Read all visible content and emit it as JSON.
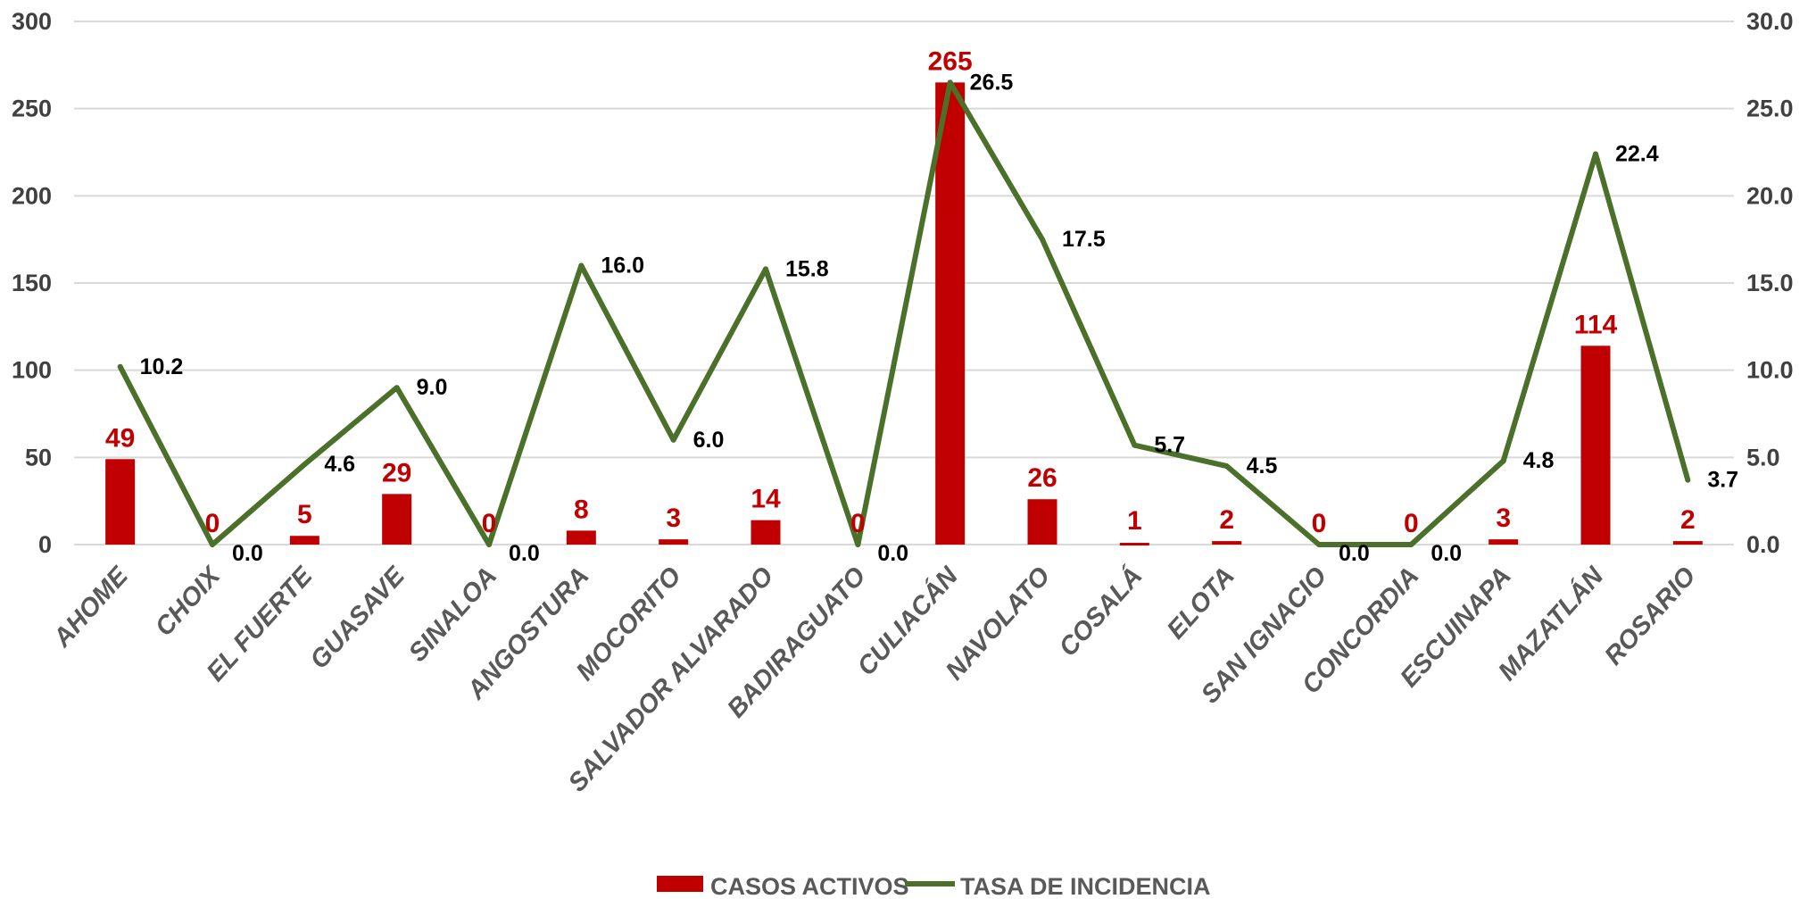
{
  "chart_data": {
    "type": "bar",
    "categories": [
      "AHOME",
      "CHOIX",
      "EL FUERTE",
      "GUASAVE",
      "SINALOA",
      "ANGOSTURA",
      "MOCORITO",
      "SALVADOR ALVARADO",
      "BADIRAGUATO",
      "CULIACÁN",
      "NAVOLATO",
      "COSALÁ",
      "ELOTA",
      "SAN IGNACIO",
      "CONCORDIA",
      "ESCUINAPA",
      "MAZATLÁN",
      "ROSARIO"
    ],
    "series": [
      {
        "name": "CASOS ACTIVOS",
        "type": "bar",
        "axis": "left",
        "color": "#c00000",
        "values": [
          49,
          0,
          5,
          29,
          0,
          8,
          3,
          14,
          0,
          265,
          26,
          1,
          2,
          0,
          0,
          3,
          114,
          2
        ],
        "labels": [
          "49",
          "0",
          "5",
          "29",
          "0",
          "8",
          "3",
          "14",
          "0",
          "265",
          "26",
          "1",
          "2",
          "0",
          "0",
          "3",
          "114",
          "2"
        ]
      },
      {
        "name": "TASA DE INCIDENCIA",
        "type": "line",
        "axis": "right",
        "color": "#4a7029",
        "values": [
          10.2,
          0.0,
          4.6,
          9.0,
          0.0,
          16.0,
          6.0,
          15.8,
          0.0,
          26.5,
          17.5,
          5.7,
          4.5,
          0.0,
          0.0,
          4.8,
          22.4,
          3.7
        ],
        "labels": [
          "10.2",
          "0.0",
          "4.6",
          "9.0",
          "0.0",
          "16.0",
          "6.0",
          "15.8",
          "0.0",
          "26.5",
          "17.5",
          "5.7",
          "4.5",
          "0.0",
          "0.0",
          "4.8",
          "22.4",
          "3.7"
        ]
      }
    ],
    "ylim": [
      0,
      300
    ],
    "y2lim": [
      0,
      30
    ],
    "yticks": [
      "0",
      "50",
      "100",
      "150",
      "200",
      "250",
      "300"
    ],
    "y2ticks": [
      "0.0",
      "5.0",
      "10.0",
      "15.0",
      "20.0",
      "25.0",
      "30.0"
    ],
    "grid": true,
    "legend": "bottom-center"
  }
}
